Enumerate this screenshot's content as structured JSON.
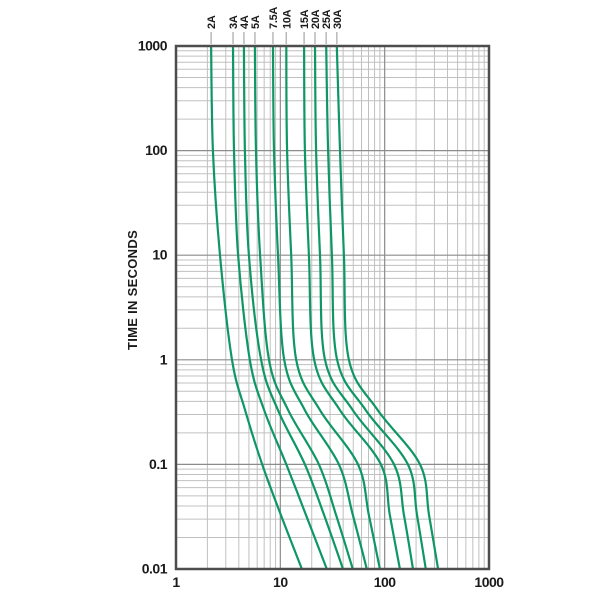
{
  "figure": {
    "background": "#ffffff"
  },
  "chart_data": {
    "type": "line",
    "title": "",
    "xlabel": "",
    "ylabel": "TIME IN SECONDS",
    "x_axis": {
      "scale": "log",
      "min": 1,
      "max": 1000,
      "tick_labels": [
        "1",
        "10",
        "100",
        "1000"
      ],
      "tick_values": [
        1,
        10,
        100,
        1000
      ]
    },
    "y_axis": {
      "scale": "log",
      "min": 0.01,
      "max": 1000,
      "tick_labels": [
        "1000",
        "100",
        "10",
        "1",
        "0.1",
        "0.01"
      ],
      "tick_values": [
        1000,
        100,
        10,
        1,
        0.1,
        0.01
      ]
    },
    "grid": {
      "minor": true,
      "major": true,
      "minor_color": "#c0c0c0",
      "major_color": "#8c8c8c",
      "border_color": "#4d4d4d"
    },
    "curve_color": "#0e9765",
    "label_tick_color": "#b8b8b8",
    "series": [
      {
        "name": "2A",
        "points": [
          [
            2.17,
            1000
          ],
          [
            2.26,
            100
          ],
          [
            2.64,
            10
          ],
          [
            3.44,
            1
          ],
          [
            4.6,
            0.33
          ],
          [
            6.7,
            0.1
          ],
          [
            10.1,
            0.033
          ],
          [
            16.1,
            0.01
          ]
        ]
      },
      {
        "name": "3A",
        "points": [
          [
            3.52,
            1000
          ],
          [
            3.6,
            100
          ],
          [
            3.94,
            10
          ],
          [
            5.1,
            1
          ],
          [
            7.0,
            0.33
          ],
          [
            11.4,
            0.1
          ],
          [
            17.6,
            0.033
          ],
          [
            27.9,
            0.01
          ]
        ]
      },
      {
        "name": "4A",
        "points": [
          [
            4.48,
            1000
          ],
          [
            4.58,
            100
          ],
          [
            5.0,
            10
          ],
          [
            6.54,
            1
          ],
          [
            9.5,
            0.33
          ],
          [
            17.2,
            0.1
          ],
          [
            26.2,
            0.033
          ],
          [
            39.9,
            0.01
          ]
        ]
      },
      {
        "name": "5A",
        "points": [
          [
            5.71,
            1000
          ],
          [
            5.84,
            100
          ],
          [
            6.4,
            10
          ],
          [
            7.78,
            1
          ],
          [
            11.9,
            0.33
          ],
          [
            23.4,
            0.1
          ],
          [
            34.2,
            0.033
          ],
          [
            49.5,
            0.01
          ]
        ]
      },
      {
        "name": "7.5A",
        "points": [
          [
            8.5,
            1000
          ],
          [
            8.7,
            100
          ],
          [
            9.5,
            10
          ],
          [
            10.9,
            1
          ],
          [
            17.2,
            0.33
          ],
          [
            36.4,
            0.1
          ],
          [
            49.5,
            0.033
          ],
          [
            67.4,
            0.01
          ]
        ]
      },
      {
        "name": "10A",
        "points": [
          [
            11.4,
            1000
          ],
          [
            11.6,
            100
          ],
          [
            12.7,
            10
          ],
          [
            14.2,
            1
          ],
          [
            24.0,
            0.33
          ],
          [
            55.5,
            0.1
          ],
          [
            70.5,
            0.033
          ],
          [
            90,
            0.01
          ]
        ]
      },
      {
        "name": "15A",
        "points": [
          [
            16.9,
            1000
          ],
          [
            17.2,
            100
          ],
          [
            18.8,
            10
          ],
          [
            21.1,
            1
          ],
          [
            37.3,
            0.33
          ],
          [
            92,
            0.1
          ],
          [
            112,
            0.033
          ],
          [
            140,
            0.01
          ]
        ]
      },
      {
        "name": "20A",
        "points": [
          [
            21.5,
            1000
          ],
          [
            22.0,
            100
          ],
          [
            24.0,
            10
          ],
          [
            26.8,
            1
          ],
          [
            49.5,
            0.33
          ],
          [
            123,
            0.1
          ],
          [
            153,
            0.033
          ],
          [
            187,
            0.01
          ]
        ]
      },
      {
        "name": "25A",
        "points": [
          [
            27.5,
            1000
          ],
          [
            28.7,
            100
          ],
          [
            31.2,
            10
          ],
          [
            35.0,
            1
          ],
          [
            66,
            0.33
          ],
          [
            167,
            0.1
          ],
          [
            204,
            0.033
          ],
          [
            248,
            0.01
          ]
        ]
      },
      {
        "name": "30A",
        "points": [
          [
            34.8,
            1000
          ],
          [
            37.3,
            100
          ],
          [
            40.7,
            10
          ],
          [
            45.4,
            1
          ],
          [
            86,
            0.33
          ],
          [
            218,
            0.1
          ],
          [
            266,
            0.033
          ],
          [
            325,
            0.01
          ]
        ]
      }
    ]
  }
}
